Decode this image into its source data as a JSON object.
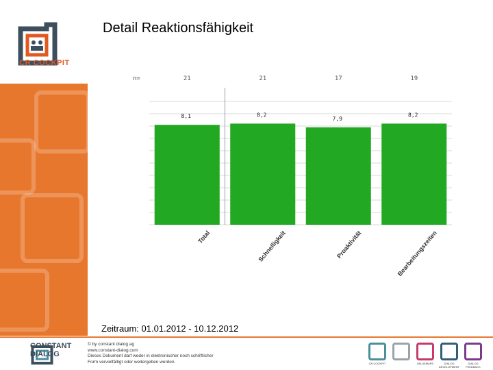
{
  "page": {
    "title": "Detail Reaktionsfähigkeit",
    "period": "Zeitraum: 01.01.2012 - 10.12.2012"
  },
  "branding": {
    "sidebar_logo_text": "CR COCKPIT",
    "footer_brand_line1": "CONSTANT",
    "footer_brand_line2": "DIALOG",
    "legal_lines": [
      "© by constant dialog ag",
      "www.constant-dialog.com",
      "Dieses Dokument darf weder in elektronischer noch schriftlicher",
      "Form vervielfältigt oder weitergeben werden."
    ],
    "footer_icons": [
      {
        "name": "cr-cockpit-icon",
        "label": "CR COCKPIT",
        "color": "#4a8f9a"
      },
      {
        "name": "unknown-icon",
        "label": "",
        "color": "#9aa4a8"
      },
      {
        "name": "valuemaps-icon",
        "label": "VALUEMAPS",
        "color": "#c43a6a"
      },
      {
        "name": "dialog-development-icon",
        "label": "DIALOG DEVELOPMENT",
        "color": "#2f5d7a"
      },
      {
        "name": "dialog-feedback-icon",
        "label": "DIALOG FEEDBACK",
        "color": "#7a3a8a"
      }
    ],
    "accent_color": "#e8772e"
  },
  "chart_data": {
    "type": "bar",
    "n_label": "n=",
    "categories": [
      "Total",
      "Schnelligkeit",
      "Proaktivität",
      "Bearbeitungszeiten"
    ],
    "n_values": [
      "21",
      "21",
      "17",
      "19"
    ],
    "values": [
      8.1,
      8.2,
      7.9,
      8.2
    ],
    "value_labels": [
      "8,1",
      "8,2",
      "7,9",
      "8,2"
    ],
    "ylim": [
      0,
      10
    ],
    "grid": true,
    "bar_color": "#22a822"
  }
}
